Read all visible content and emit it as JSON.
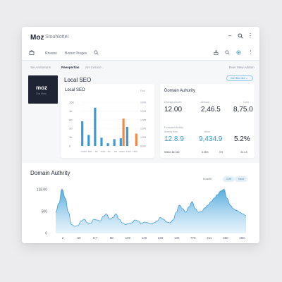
{
  "app": {
    "logo": "Moz",
    "subtitle": "Stouhlottei"
  },
  "toolbar": {
    "field1": "Rrwase",
    "field2": "Boorer lhoges"
  },
  "subnav": {
    "item1": "Sei Andorsons",
    "item2": "Reeepertlas",
    "item3": "Arn lorsoce ..",
    "right": "Reer Mew Addom"
  },
  "brand": {
    "name": "moz",
    "tagline": "Ora Vheo"
  },
  "local_seo": {
    "title": "Local SEO",
    "pill": "Gon Bnc ned",
    "card_title": "Local SEO",
    "card_meta": "Fool"
  },
  "domain_card": {
    "title": "Domain Auhurity",
    "row1_labels": [
      "Dareags Acoiee",
      "Abecoa",
      "Ccnn"
    ],
    "row1_values": [
      "12.00",
      "2,46.5",
      "8,75.0"
    ],
    "row2_labels": [
      "Fodasaeft Atricity",
      "Acreria frors",
      "Afoor"
    ],
    "row2_values": [
      "12.8.9",
      "9,434.9",
      "5.2%"
    ],
    "row3_values": [
      "50804 86 045",
      "5.96%",
      "0%",
      "30.4.5"
    ]
  },
  "domain_chart": {
    "title": "Domain Authrity",
    "buttons": [
      "Eursest",
      "Cote",
      "Iskoe"
    ]
  },
  "chart_data": [
    {
      "type": "bar",
      "title": "Local SEO",
      "y_ticks_left": [
        "150",
        "1b",
        "60",
        "30",
        "1b",
        "0"
      ],
      "y_ticks_right": [
        "1.0%",
        "1.0%",
        "1.0%",
        "1.0%",
        "1.0%",
        "0.0%"
      ],
      "categories": [
        "T2000",
        "B00",
        "B0",
        "T200",
        "B0",
        "B0",
        "ES00",
        "T200",
        "T900"
      ],
      "series": [
        {
          "color": "#3b9ad6",
          "values": [
            90,
            40,
            140,
            30,
            10,
            25,
            28,
            70,
            0
          ]
        },
        {
          "color": "#ef8a4a",
          "values": [
            0,
            0,
            0,
            0,
            0,
            0,
            100,
            0,
            45
          ]
        }
      ],
      "ylim": [
        0,
        160
      ]
    },
    {
      "type": "area",
      "title": "Domain Authrity",
      "y_ticks": [
        "128.00",
        "500",
        "0"
      ],
      "x_ticks": [
        "2",
        "56",
        "9-7",
        "88",
        "100",
        "120",
        "240",
        "130",
        "770",
        "211",
        "290",
        "200"
      ],
      "x": [
        0,
        1,
        2,
        3,
        4,
        5,
        6,
        7,
        8,
        9,
        10,
        11,
        12,
        13,
        14,
        15,
        16,
        17,
        18,
        19,
        20,
        21,
        22,
        23,
        24,
        25,
        26,
        27,
        28,
        29,
        30,
        31,
        32,
        33,
        34,
        35,
        36,
        37,
        38,
        39,
        40,
        41,
        42,
        43,
        44,
        45,
        46,
        47,
        48,
        49,
        50,
        51,
        52,
        53,
        54,
        55,
        56,
        57,
        58,
        59,
        60
      ],
      "values": [
        60,
        85,
        125,
        100,
        60,
        25,
        20,
        22,
        35,
        40,
        30,
        28,
        40,
        38,
        35,
        48,
        55,
        40,
        45,
        55,
        40,
        30,
        25,
        28,
        30,
        38,
        35,
        28,
        32,
        30,
        28,
        30,
        35,
        45,
        40,
        32,
        30,
        38,
        60,
        80,
        70,
        60,
        75,
        90,
        70,
        60,
        62,
        72,
        80,
        90,
        100,
        110,
        120,
        125,
        100,
        80,
        70,
        65,
        60,
        55,
        50
      ],
      "ylim": [
        0,
        140
      ],
      "color": "#4ea8dc"
    }
  ]
}
